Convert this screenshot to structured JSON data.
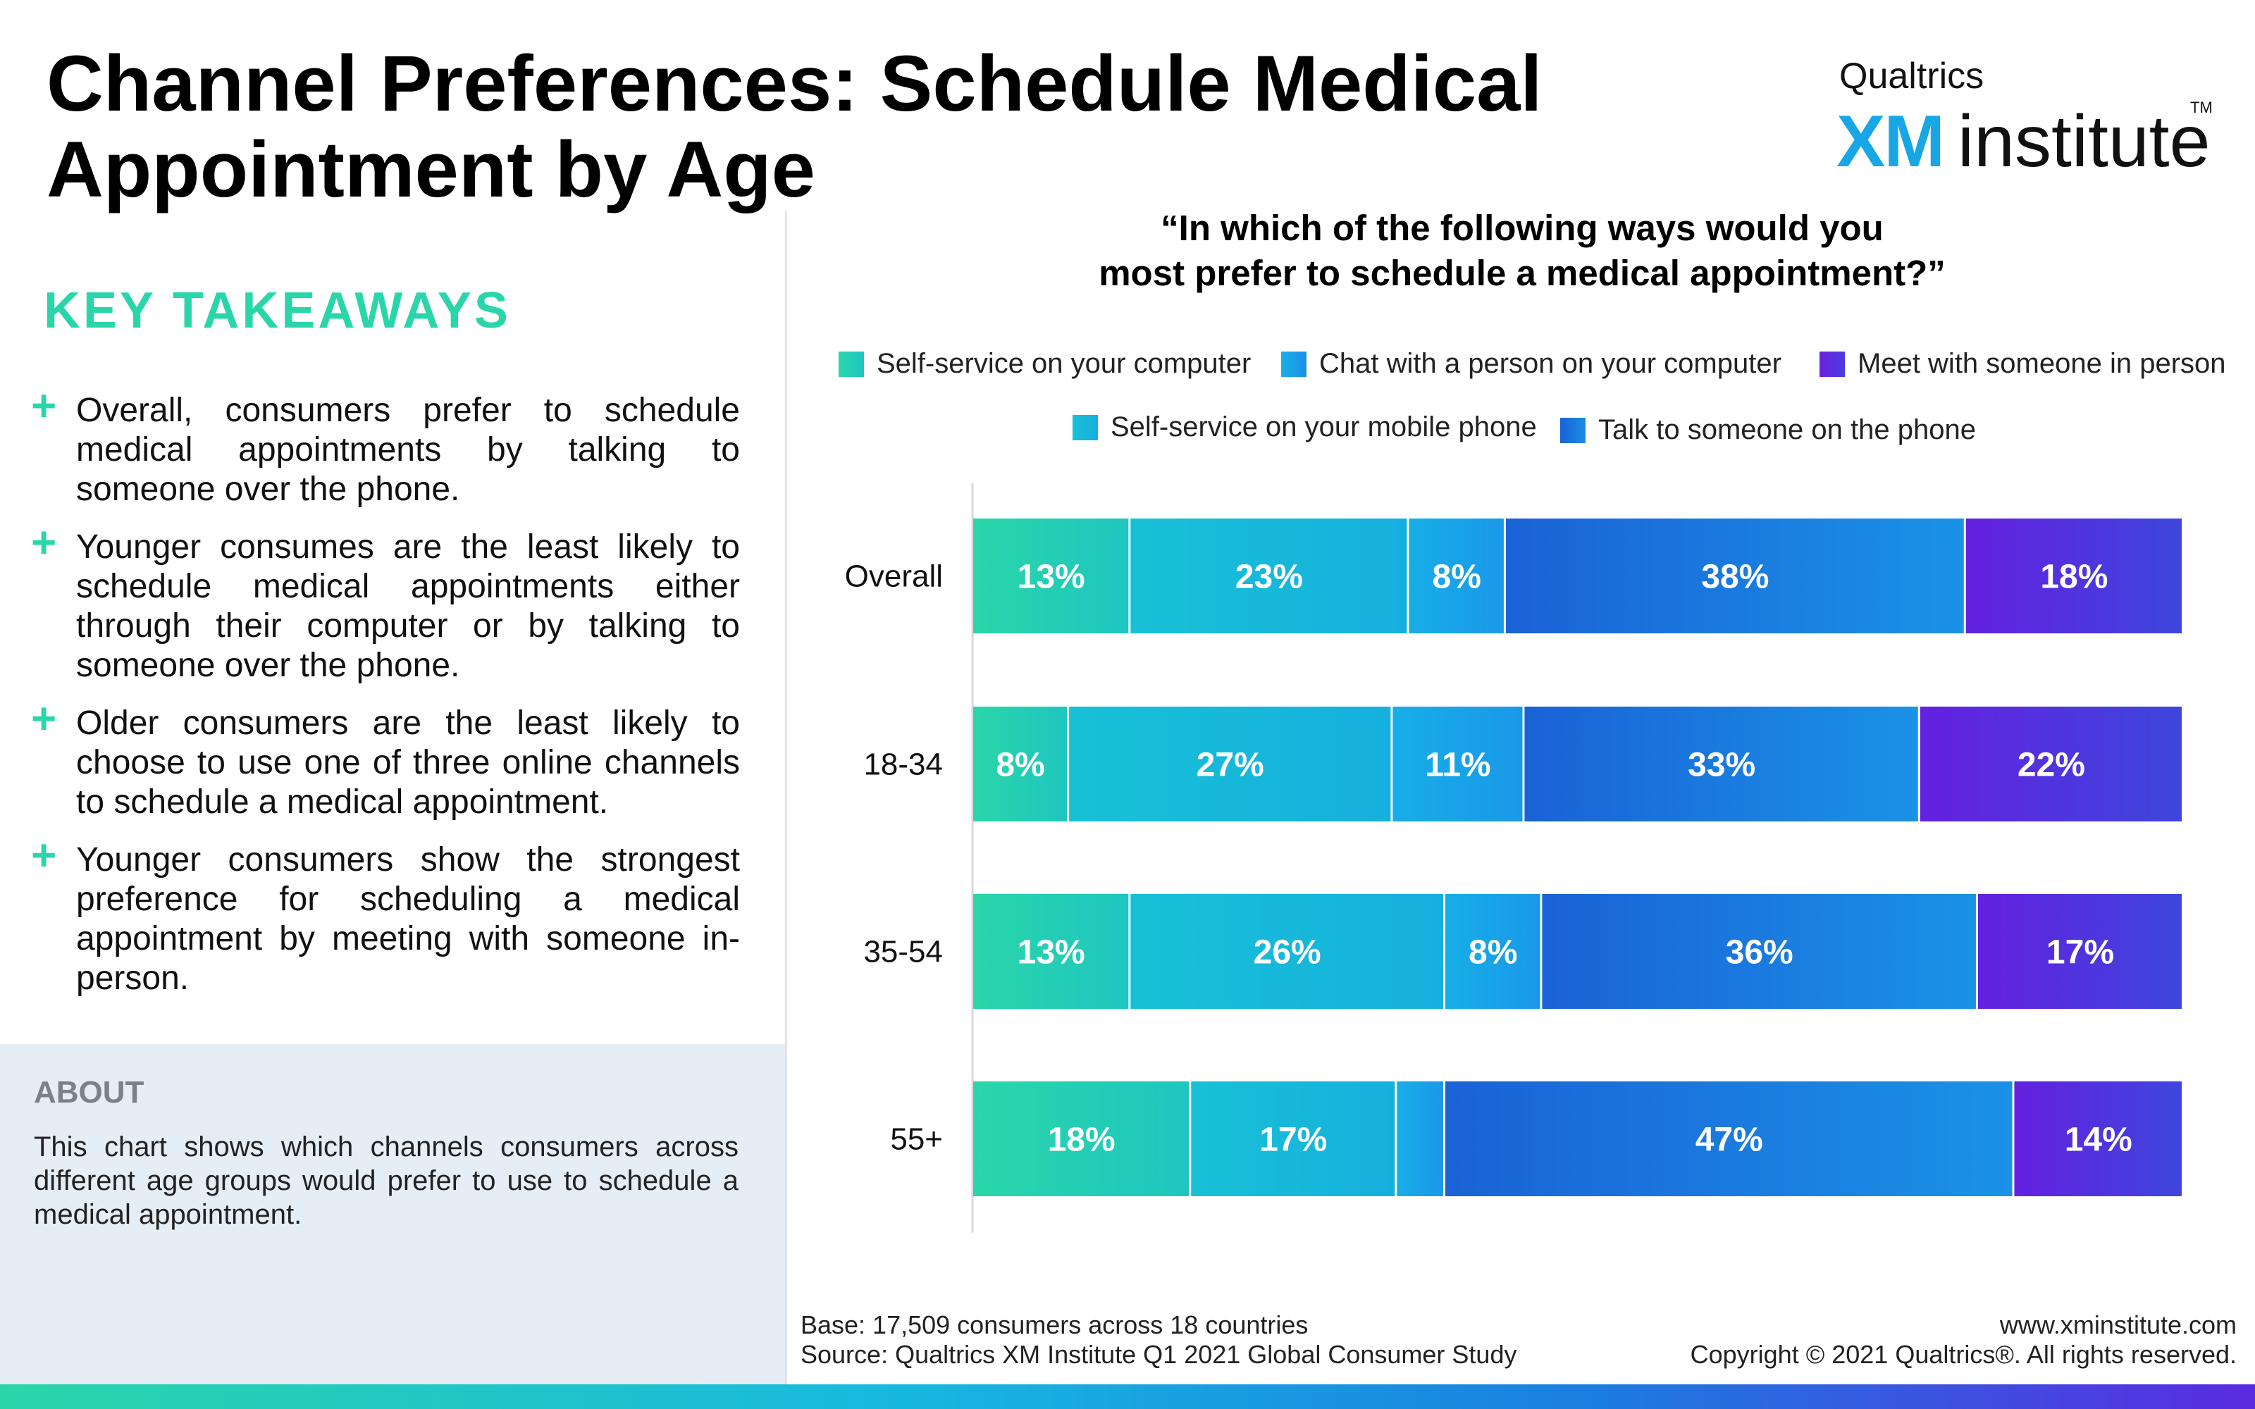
{
  "title": "Channel Preferences: Schedule Medical Appointment by Age",
  "logo": {
    "top": "Qualtrics",
    "xm": "XM",
    "institute": "institute",
    "tm": "TM"
  },
  "key_takeaways": {
    "heading": "KEY TAKEAWAYS",
    "items": [
      "Overall, consumers prefer to schedule medical appointments by talking to someone over the phone.",
      "Younger consumes are the least likely to schedule medical appointments either through their computer or by talking to someone over the phone.",
      "Older consumers are the least likely to choose to use one of three online channels to schedule a medical appointment.",
      "Younger consumers show the strongest preference for scheduling a medical appointment by meeting with someone in-person."
    ]
  },
  "about": {
    "heading": "ABOUT",
    "text": "This chart shows which channels consumers across different age groups would prefer to use to schedule a medical appointment."
  },
  "question": {
    "line1": "“In which of the following ways would you",
    "line2": "most prefer to schedule a medical appointment?”"
  },
  "legend": [
    {
      "label": "Self-service on your computer",
      "color": "#2ad6a9"
    },
    {
      "label": "Chat with a person on your computer",
      "color": "#17a6e6"
    },
    {
      "label": "Meet with someone in person",
      "color": "#5a28e0"
    },
    {
      "label": "Self-service on your mobile phone",
      "color": "#16bcd8"
    },
    {
      "label": "Talk to someone on the phone",
      "color": "#1a6fd6"
    }
  ],
  "chart_data": {
    "type": "bar",
    "orientation": "horizontal",
    "stacked": true,
    "categories": [
      "Overall",
      "18-34",
      "35-54",
      "55+"
    ],
    "series": [
      {
        "name": "Self-service on your computer",
        "values": [
          13,
          8,
          13,
          18
        ],
        "color": "#2ad6a9"
      },
      {
        "name": "Self-service on your mobile phone",
        "values": [
          23,
          27,
          26,
          17
        ],
        "color": "#16bcd8"
      },
      {
        "name": "Chat with a person on your computer",
        "values": [
          8,
          11,
          8,
          4
        ],
        "color": "#17a6e6"
      },
      {
        "name": "Talk to someone on the phone",
        "values": [
          38,
          33,
          36,
          47
        ],
        "color": "#1a6fd6"
      },
      {
        "name": "Meet with someone in person",
        "values": [
          18,
          22,
          17,
          14
        ],
        "color": "#5a28e0"
      }
    ],
    "data_labels": [
      [
        "13%",
        "23%",
        "8%",
        "38%",
        "18%"
      ],
      [
        "8%",
        "27%",
        "11%",
        "33%",
        "22%"
      ],
      [
        "13%",
        "26%",
        "8%",
        "36%",
        "17%"
      ],
      [
        "18%",
        "17%",
        "",
        "47%",
        "14%"
      ]
    ],
    "xlim": [
      0,
      100
    ]
  },
  "footer": {
    "base": "Base: 17,509 consumers across 18 countries",
    "source": "Source: Qualtrics XM Institute Q1 2021 Global Consumer Study",
    "website": "www.xminstitute.com",
    "copyright": "Copyright © 2021 Qualtrics®. All rights reserved."
  }
}
